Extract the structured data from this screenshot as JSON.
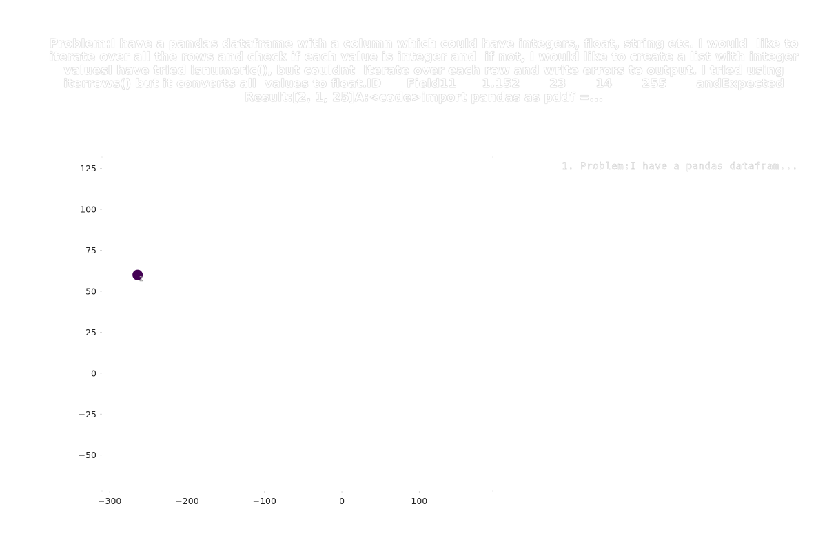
{
  "chart_data": {
    "type": "scatter",
    "title": "Problem:I have a pandas dataframe with a column which could have integers, float, string etc. I would  like to iterate over all the rows and check if each value is integer and  if not, I would like to create a list with integer valuesI have tried isnumeric(), but couldnt  iterate over each row and write errors to output. I tried using iterrows() but it converts all  values to float.ID      Field11      1.152       23       14       255       andExpected  Result:[2, 1, 25]A:<code>import pandas as pddf =...",
    "xlabel": "",
    "ylabel": "",
    "xlim": [
      -310,
      195
    ],
    "ylim": [
      -72,
      132
    ],
    "x_ticks": [
      -300,
      -200,
      -100,
      0,
      100
    ],
    "x_tick_labels": [
      "−300",
      "−200",
      "−100",
      "0",
      "100"
    ],
    "y_ticks": [
      125,
      100,
      75,
      50,
      25,
      0,
      -25,
      -50
    ],
    "y_tick_labels": [
      "125",
      "100",
      "75",
      "50",
      "25",
      "0",
      "−25",
      "−50"
    ],
    "grid": false,
    "legend_position": "top-right",
    "series": [
      {
        "name": "1. Problem:I have a pandas datafram...",
        "color": "#440154",
        "points": [
          {
            "x": -264,
            "y": 60,
            "label": "1"
          }
        ]
      }
    ]
  }
}
